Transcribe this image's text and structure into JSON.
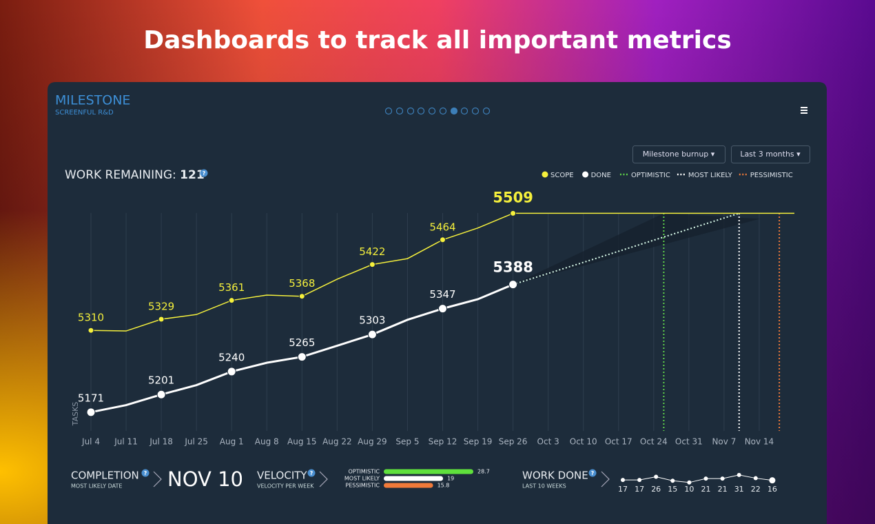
{
  "page": {
    "headline": "Dashboards to track all important metrics"
  },
  "header": {
    "title": "MILESTONE",
    "subtitle": "SCREENFUL R&D"
  },
  "controls": {
    "report": "Milestone burnup ▾",
    "range": "Last 3 months ▾"
  },
  "work_remaining": {
    "label": "WORK REMAINING:",
    "value": 121,
    "help": "?"
  },
  "chart_data": {
    "type": "line",
    "y_label": "TASKS",
    "categories": [
      "Jul 4",
      "Jul 11",
      "Jul 18",
      "Jul 25",
      "Aug 1",
      "Aug 8",
      "Aug 15",
      "Aug 22",
      "Aug 29",
      "Sep 5",
      "Sep 12",
      "Sep 19",
      "Sep 26",
      "Oct 3",
      "Oct 10",
      "Oct 17",
      "Oct 24",
      "Oct 31",
      "Nov 7",
      "Nov 14"
    ],
    "ylim": [
      5145,
      5520
    ],
    "grid": true,
    "series": [
      {
        "name": "SCOPE",
        "color": "#f5f03c",
        "values": [
          5310,
          5309,
          5329,
          5337,
          5361,
          5370,
          5368,
          5397,
          5422,
          5432,
          5464,
          5484,
          5509,
          null,
          null,
          null,
          null,
          null,
          null,
          null
        ]
      },
      {
        "name": "DONE",
        "color": "#ffffff",
        "values": [
          5171,
          5183,
          5201,
          5217,
          5240,
          5255,
          5265,
          5284,
          5303,
          5328,
          5347,
          5363,
          5388,
          null,
          null,
          null,
          null,
          null,
          null,
          null
        ]
      }
    ],
    "forecasts": [
      {
        "name": "OPTIMISTIC",
        "color": "#5fd34a",
        "date": "Oct 26"
      },
      {
        "name": "MOST LIKELY",
        "color": "#ffffff",
        "date": "Nov 10"
      },
      {
        "name": "PESSIMISTIC",
        "color": "#f07a3a",
        "date": "Nov 18"
      }
    ]
  },
  "completion": {
    "label": "COMPLETION",
    "sublabel": "MOST LIKELY DATE",
    "value": "NOV 10",
    "help": "?"
  },
  "velocity": {
    "label": "VELOCITY",
    "sublabel": "VELOCITY PER WEEK",
    "help": "?",
    "bars": [
      {
        "name": "OPTIMISTIC",
        "value": 28.7,
        "color": "#5fe03c"
      },
      {
        "name": "MOST LIKELY",
        "value": 19,
        "color": "#ffffff"
      },
      {
        "name": "PESSIMISTIC",
        "value": 15.8,
        "color": "#f07a3a"
      }
    ]
  },
  "work_done": {
    "label": "WORK DONE",
    "sublabel": "LAST 10 WEEKS",
    "help": "?",
    "values": [
      17,
      17,
      26,
      15,
      10,
      21,
      21,
      31,
      22,
      16
    ]
  }
}
